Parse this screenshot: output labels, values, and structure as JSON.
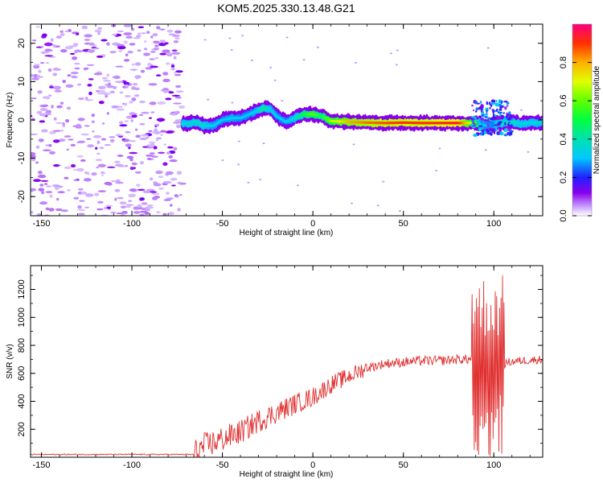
{
  "title": "KOM5.2025.330.13.48.G21",
  "chart_data": [
    {
      "type": "heatmap",
      "name": "spectrogram",
      "xlabel": "Height of straight line (km)",
      "ylabel": "Frequency (Hz)",
      "xlim": [
        -156,
        127
      ],
      "ylim": [
        -25,
        25
      ],
      "xticks": [
        -150,
        -100,
        -50,
        0,
        50,
        100
      ],
      "xtick_labels": [
        "-150",
        "-100",
        "-50",
        "0",
        "50",
        "100"
      ],
      "yticks": [
        -20,
        -10,
        0,
        10,
        20
      ],
      "ytick_labels": [
        "-20",
        "-10",
        "0",
        "10",
        "20"
      ],
      "noise_region_x": [
        -156,
        -72
      ],
      "ridge": {
        "x": [
          -70,
          -65,
          -60,
          -55,
          -50,
          -45,
          -40,
          -35,
          -30,
          -27,
          -24,
          -20,
          -15,
          -10,
          -5,
          0,
          5,
          10,
          20,
          30,
          40,
          50,
          60,
          70,
          80,
          90,
          95,
          100,
          105,
          110,
          115,
          120,
          127
        ],
        "y": [
          -1,
          -0.5,
          -1.5,
          -1.5,
          0,
          0.5,
          0.5,
          1.5,
          2.5,
          3,
          3,
          1,
          -0.5,
          0.5,
          1.5,
          1.5,
          1,
          -0.3,
          -0.5,
          -0.7,
          -0.8,
          -0.7,
          -0.8,
          -0.8,
          -0.8,
          -0.8,
          -1.5,
          -1,
          -0.8,
          -0.5,
          -1,
          -0.8,
          -0.7
        ],
        "amp": [
          0.35,
          0.38,
          0.36,
          0.32,
          0.3,
          0.33,
          0.3,
          0.3,
          0.35,
          0.45,
          0.35,
          0.3,
          0.3,
          0.35,
          0.5,
          0.6,
          0.5,
          0.65,
          0.8,
          0.85,
          0.88,
          0.9,
          0.9,
          0.92,
          0.95,
          0.6,
          0.3,
          0.3,
          0.4,
          0.4,
          0.35,
          0.35,
          0.35
        ]
      },
      "colorbar": {
        "label": "Normalized spectral amplitude",
        "range": [
          0,
          1
        ],
        "ticks": [
          0.0,
          0.2,
          0.4,
          0.6,
          0.8
        ],
        "tick_labels": [
          "0.0",
          "0.2",
          "0.4",
          "0.6",
          "0.8"
        ]
      }
    },
    {
      "type": "line",
      "name": "snr",
      "xlabel": "Height of straight line (km)",
      "ylabel": "SNR (v/v)",
      "xlim": [
        -156,
        127
      ],
      "ylim": [
        0,
        1370
      ],
      "xticks": [
        -150,
        -100,
        -50,
        0,
        50,
        100
      ],
      "xtick_labels": [
        "-150",
        "-100",
        "-50",
        "0",
        "50",
        "100"
      ],
      "yticks": [
        200,
        400,
        600,
        800,
        1000,
        1200
      ],
      "ytick_labels": [
        "200",
        "400",
        "600",
        "800",
        "1000",
        "1200"
      ],
      "color": "#e03030",
      "trend": {
        "x": [
          -156,
          -66,
          -60,
          -50,
          -40,
          -30,
          -20,
          -10,
          0,
          10,
          20,
          30,
          40,
          50,
          60,
          70,
          80,
          88,
          92,
          96,
          100,
          104,
          108,
          115,
          127
        ],
        "y": [
          20,
          20,
          80,
          130,
          180,
          260,
          320,
          380,
          430,
          520,
          580,
          640,
          670,
          680,
          690,
          690,
          700,
          700,
          650,
          650,
          650,
          650,
          680,
          690,
          700
        ]
      }
    }
  ]
}
